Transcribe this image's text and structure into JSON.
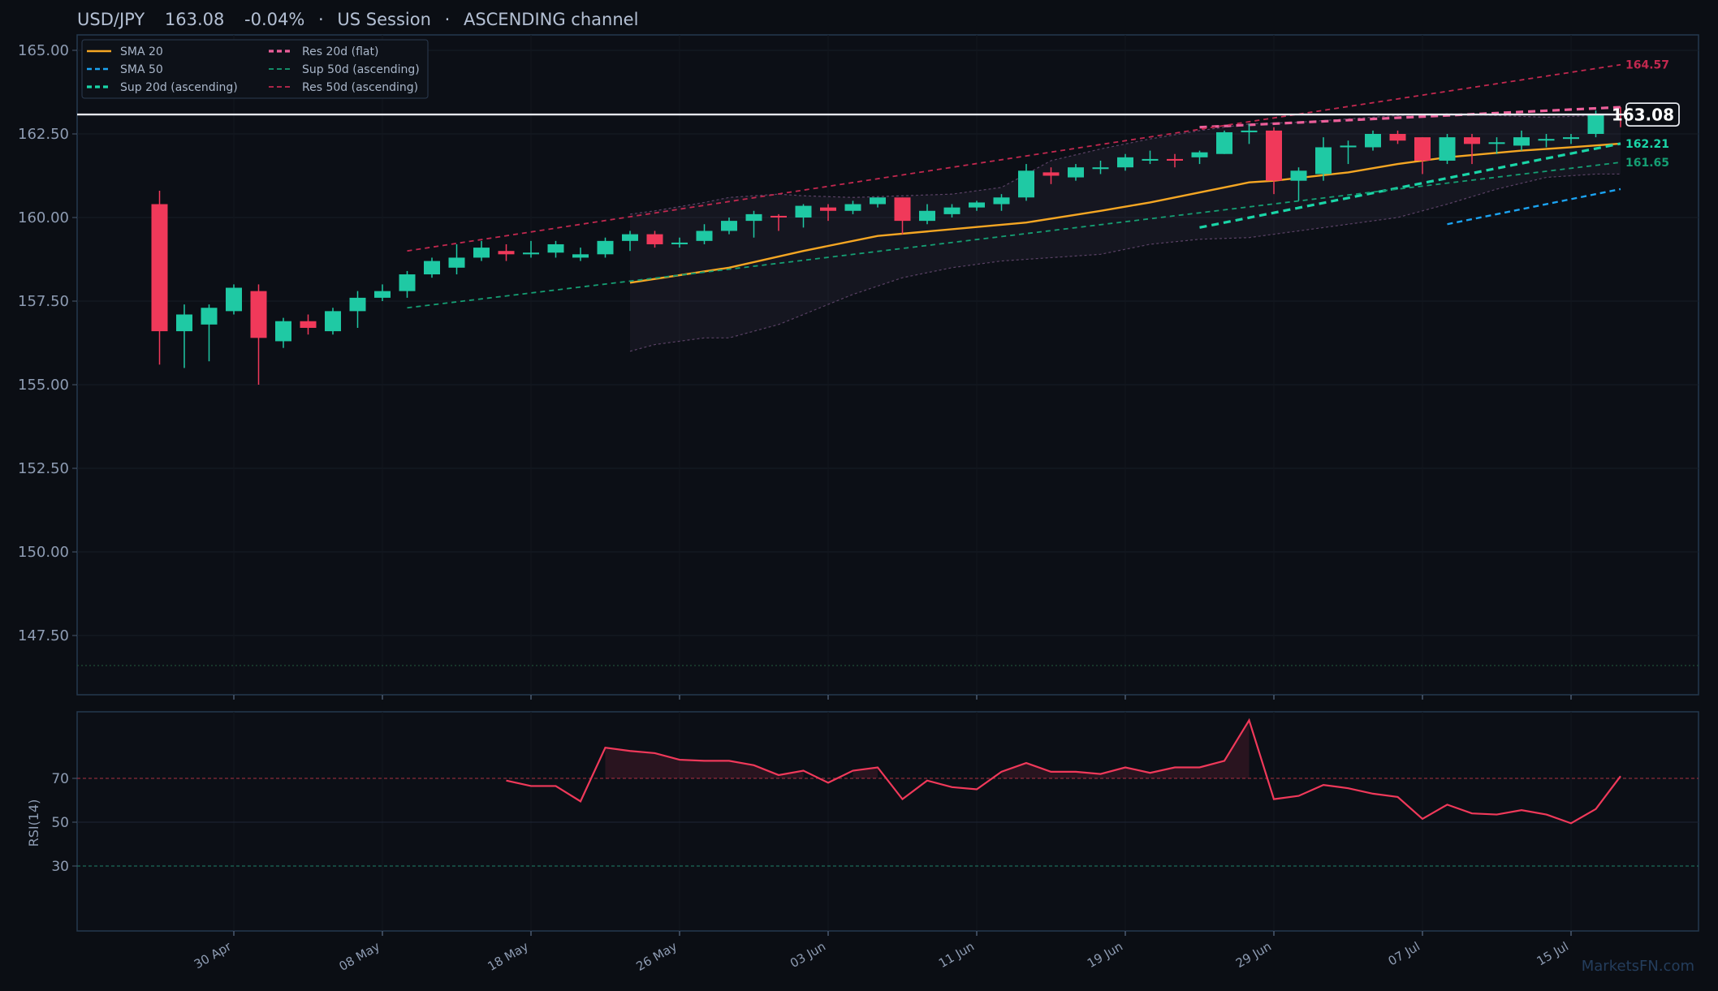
{
  "header": {
    "symbol": "USD/JPY",
    "price": "163.08",
    "change": "-0.04%",
    "session": "US Session",
    "pattern": "ASCENDING channel"
  },
  "watermark": "MarketsFN.com",
  "colors": {
    "background": "#0b0e14",
    "bull": "#1fc9a4",
    "bear": "#f0395a",
    "sma20": "#f5a623",
    "sma50": "#1ba3f2",
    "sup20": "#1ad6a8",
    "res20": "#ec5f9a",
    "sup50": "#159e73",
    "res50": "#c2284f",
    "rsi": "#f0395a",
    "axis_text": "#8e9cb3",
    "frame": "#24384f"
  },
  "chart_data": [
    {
      "type": "candlestick",
      "title": "",
      "xlabel": "",
      "ylabel": "",
      "ylim": [
        145.5,
        165.5
      ],
      "yticks": [
        "165.00",
        "162.50",
        "160.00",
        "157.50",
        "155.00",
        "152.50",
        "150.00",
        "147.50"
      ],
      "ytick_values": [
        165,
        162.5,
        160,
        157.5,
        155,
        152.5,
        150,
        147.5
      ],
      "xtick_labels": [
        "30 Apr",
        "08 May",
        "18 May",
        "26 May",
        "03 Jun",
        "11 Jun",
        "19 Jun",
        "29 Jun",
        "07 Jul",
        "15 Jul"
      ],
      "xtick_index": [
        3,
        9,
        15,
        21,
        27,
        33,
        39,
        45,
        51,
        57
      ],
      "x_index_range": [
        -0.5,
        66.5
      ],
      "grid": true,
      "legend_placement": "top-left",
      "last_price": "163.08",
      "last_price_value": 163.08,
      "candles": [
        {
          "i": 0,
          "o": 160.4,
          "h": 160.8,
          "l": 155.6,
          "c": 156.6
        },
        {
          "i": 1,
          "o": 156.6,
          "h": 157.4,
          "l": 155.5,
          "c": 157.1
        },
        {
          "i": 2,
          "o": 156.8,
          "h": 157.4,
          "l": 155.7,
          "c": 157.3
        },
        {
          "i": 3,
          "o": 157.2,
          "h": 158.0,
          "l": 157.1,
          "c": 157.9
        },
        {
          "i": 4,
          "o": 157.8,
          "h": 158.0,
          "l": 155.0,
          "c": 156.4
        },
        {
          "i": 5,
          "o": 156.3,
          "h": 157.0,
          "l": 156.1,
          "c": 156.9
        },
        {
          "i": 6,
          "o": 156.9,
          "h": 157.1,
          "l": 156.5,
          "c": 156.7
        },
        {
          "i": 7,
          "o": 156.6,
          "h": 157.3,
          "l": 156.5,
          "c": 157.2
        },
        {
          "i": 8,
          "o": 157.2,
          "h": 157.8,
          "l": 156.7,
          "c": 157.6
        },
        {
          "i": 9,
          "o": 157.6,
          "h": 158.0,
          "l": 157.5,
          "c": 157.8
        },
        {
          "i": 10,
          "o": 157.8,
          "h": 158.4,
          "l": 157.6,
          "c": 158.3
        },
        {
          "i": 11,
          "o": 158.3,
          "h": 158.8,
          "l": 158.2,
          "c": 158.7
        },
        {
          "i": 12,
          "o": 158.5,
          "h": 159.2,
          "l": 158.3,
          "c": 158.8
        },
        {
          "i": 13,
          "o": 158.8,
          "h": 159.3,
          "l": 158.7,
          "c": 159.1
        },
        {
          "i": 14,
          "o": 159.0,
          "h": 159.2,
          "l": 158.7,
          "c": 158.9
        },
        {
          "i": 15,
          "o": 158.9,
          "h": 159.3,
          "l": 158.8,
          "c": 158.95
        },
        {
          "i": 16,
          "o": 158.95,
          "h": 159.3,
          "l": 158.8,
          "c": 159.2
        },
        {
          "i": 17,
          "o": 158.8,
          "h": 159.1,
          "l": 158.7,
          "c": 158.9
        },
        {
          "i": 18,
          "o": 158.9,
          "h": 159.4,
          "l": 158.8,
          "c": 159.3
        },
        {
          "i": 19,
          "o": 159.3,
          "h": 159.6,
          "l": 159.0,
          "c": 159.5
        },
        {
          "i": 20,
          "o": 159.5,
          "h": 159.6,
          "l": 159.1,
          "c": 159.2
        },
        {
          "i": 21,
          "o": 159.2,
          "h": 159.4,
          "l": 159.1,
          "c": 159.25
        },
        {
          "i": 22,
          "o": 159.3,
          "h": 159.8,
          "l": 159.2,
          "c": 159.6
        },
        {
          "i": 23,
          "o": 159.6,
          "h": 160.0,
          "l": 159.5,
          "c": 159.9
        },
        {
          "i": 24,
          "o": 159.9,
          "h": 160.2,
          "l": 159.4,
          "c": 160.1
        },
        {
          "i": 25,
          "o": 160.05,
          "h": 160.1,
          "l": 159.6,
          "c": 160.0
        },
        {
          "i": 26,
          "o": 160.0,
          "h": 160.4,
          "l": 159.7,
          "c": 160.35
        },
        {
          "i": 27,
          "o": 160.3,
          "h": 160.4,
          "l": 159.9,
          "c": 160.2
        },
        {
          "i": 28,
          "o": 160.2,
          "h": 160.5,
          "l": 160.1,
          "c": 160.4
        },
        {
          "i": 29,
          "o": 160.4,
          "h": 160.6,
          "l": 160.3,
          "c": 160.6
        },
        {
          "i": 30,
          "o": 160.6,
          "h": 160.6,
          "l": 159.5,
          "c": 159.9
        },
        {
          "i": 31,
          "o": 159.9,
          "h": 160.4,
          "l": 159.8,
          "c": 160.2
        },
        {
          "i": 32,
          "o": 160.1,
          "h": 160.4,
          "l": 160.0,
          "c": 160.3
        },
        {
          "i": 33,
          "o": 160.3,
          "h": 160.5,
          "l": 160.2,
          "c": 160.45
        },
        {
          "i": 34,
          "o": 160.4,
          "h": 160.7,
          "l": 160.2,
          "c": 160.6
        },
        {
          "i": 35,
          "o": 160.6,
          "h": 161.6,
          "l": 160.5,
          "c": 161.4
        },
        {
          "i": 36,
          "o": 161.35,
          "h": 161.5,
          "l": 161.0,
          "c": 161.25
        },
        {
          "i": 37,
          "o": 161.2,
          "h": 161.6,
          "l": 161.1,
          "c": 161.5
        },
        {
          "i": 38,
          "o": 161.45,
          "h": 161.7,
          "l": 161.3,
          "c": 161.5
        },
        {
          "i": 39,
          "o": 161.5,
          "h": 161.9,
          "l": 161.4,
          "c": 161.8
        },
        {
          "i": 40,
          "o": 161.7,
          "h": 162.0,
          "l": 161.6,
          "c": 161.75
        },
        {
          "i": 41,
          "o": 161.75,
          "h": 161.9,
          "l": 161.5,
          "c": 161.7
        },
        {
          "i": 42,
          "o": 161.8,
          "h": 162.0,
          "l": 161.6,
          "c": 161.95
        },
        {
          "i": 43,
          "o": 161.9,
          "h": 162.6,
          "l": 161.9,
          "c": 162.55
        },
        {
          "i": 44,
          "o": 162.55,
          "h": 162.8,
          "l": 162.2,
          "c": 162.6
        },
        {
          "i": 45,
          "o": 162.6,
          "h": 162.7,
          "l": 160.7,
          "c": 161.1
        },
        {
          "i": 46,
          "o": 161.1,
          "h": 161.5,
          "l": 160.5,
          "c": 161.4
        },
        {
          "i": 47,
          "o": 161.3,
          "h": 162.4,
          "l": 161.1,
          "c": 162.1
        },
        {
          "i": 48,
          "o": 162.1,
          "h": 162.3,
          "l": 161.6,
          "c": 162.15
        },
        {
          "i": 49,
          "o": 162.1,
          "h": 162.6,
          "l": 162.0,
          "c": 162.5
        },
        {
          "i": 50,
          "o": 162.5,
          "h": 162.6,
          "l": 162.2,
          "c": 162.3
        },
        {
          "i": 51,
          "o": 162.4,
          "h": 162.4,
          "l": 161.3,
          "c": 161.7
        },
        {
          "i": 52,
          "o": 161.7,
          "h": 162.5,
          "l": 161.6,
          "c": 162.4
        },
        {
          "i": 53,
          "o": 162.4,
          "h": 162.5,
          "l": 161.6,
          "c": 162.2
        },
        {
          "i": 54,
          "o": 162.2,
          "h": 162.4,
          "l": 161.9,
          "c": 162.25
        },
        {
          "i": 55,
          "o": 162.15,
          "h": 162.6,
          "l": 162.0,
          "c": 162.4
        },
        {
          "i": 56,
          "o": 162.3,
          "h": 162.5,
          "l": 162.1,
          "c": 162.35
        },
        {
          "i": 57,
          "o": 162.35,
          "h": 162.5,
          "l": 162.2,
          "c": 162.4
        },
        {
          "i": 58,
          "o": 162.5,
          "h": 163.2,
          "l": 162.4,
          "c": 163.1
        },
        {
          "i": 59,
          "o": 163.1,
          "h": 163.3,
          "l": 162.7,
          "c": 163.08
        }
      ],
      "series": [
        {
          "name": "SMA 20",
          "style": "solid",
          "color": "#f5a623",
          "x": [
            19,
            23,
            26,
            29,
            35,
            38,
            40,
            44,
            45,
            48,
            50,
            52,
            55,
            57,
            59
          ],
          "values": [
            158.05,
            158.5,
            159.0,
            159.45,
            159.85,
            160.2,
            160.45,
            161.05,
            161.1,
            161.35,
            161.6,
            161.8,
            162.0,
            162.1,
            162.21
          ]
        },
        {
          "name": "SMA 50",
          "style": "dash",
          "color": "#1ba3f2",
          "x": [
            52,
            59
          ],
          "values": [
            159.8,
            160.85
          ]
        },
        {
          "name": "Sup 20d (ascending)",
          "style": "dash-bold",
          "color": "#1ad6a8",
          "x": [
            42,
            59
          ],
          "values": [
            159.7,
            162.21
          ]
        },
        {
          "name": "Res 20d (flat)",
          "style": "dash-bold",
          "color": "#ec5f9a",
          "x": [
            42,
            59
          ],
          "values": [
            162.7,
            163.3
          ]
        },
        {
          "name": "Sup 50d (ascending)",
          "style": "dash-thin",
          "color": "#159e73",
          "x": [
            10,
            59
          ],
          "values": [
            157.3,
            161.65
          ]
        },
        {
          "name": "Res 50d (ascending)",
          "style": "dash-thin",
          "color": "#c2284f",
          "x": [
            10,
            59
          ],
          "values": [
            159.0,
            164.57
          ]
        }
      ],
      "bollinger": {
        "x": [
          19,
          20,
          22,
          23,
          25,
          26,
          28,
          30,
          32,
          34,
          36,
          38,
          40,
          42,
          44,
          46,
          48,
          50,
          52,
          54,
          56,
          58,
          59
        ],
        "upper": [
          160.1,
          160.2,
          160.45,
          160.6,
          160.7,
          160.65,
          160.6,
          160.65,
          160.7,
          160.9,
          161.7,
          162.05,
          162.35,
          162.6,
          162.8,
          162.85,
          162.95,
          163.05,
          163.1,
          163.05,
          163.0,
          163.05,
          163.1
        ],
        "lower": [
          156.0,
          156.2,
          156.4,
          156.4,
          156.8,
          157.1,
          157.7,
          158.2,
          158.5,
          158.7,
          158.8,
          158.9,
          159.2,
          159.35,
          159.4,
          159.6,
          159.8,
          160.0,
          160.4,
          160.85,
          161.2,
          161.3,
          161.3
        ]
      },
      "right_labels": [
        {
          "text": "164.57",
          "value": 164.57,
          "color": "#c2284f"
        },
        {
          "text": "162.21",
          "value": 162.21,
          "color": "#1ad6a8"
        },
        {
          "text": "161.65",
          "value": 161.65,
          "color": "#159e73"
        }
      ]
    },
    {
      "type": "line",
      "title": "",
      "xlabel": "",
      "ylabel": "RSI(14)",
      "ylim": [
        0,
        100
      ],
      "yticks": [
        "70",
        "50",
        "30"
      ],
      "ytick_values": [
        70,
        50,
        30
      ],
      "overbought": 70,
      "oversold": 30,
      "series": [
        {
          "x": [
            14,
            15,
            16,
            17,
            18,
            19,
            20,
            21,
            22,
            23,
            24,
            25,
            26,
            27,
            28,
            29,
            30,
            31,
            32,
            33,
            34,
            35,
            36,
            37,
            38,
            39,
            40,
            41,
            42,
            43,
            44,
            45,
            46,
            47,
            48,
            49,
            50,
            51,
            52,
            53,
            54,
            55,
            56,
            57,
            58,
            59
          ],
          "values": [
            69,
            66.5,
            66.5,
            59.5,
            84,
            82.5,
            81.5,
            78.5,
            78,
            78,
            76,
            71.5,
            73.5,
            68,
            73.5,
            75,
            60.5,
            69,
            66,
            65,
            73,
            77,
            73,
            73,
            72,
            75,
            72.5,
            75,
            75,
            78,
            96.5,
            60.5,
            62,
            67,
            65.5,
            63,
            61.5,
            51.5,
            58,
            54,
            53.5,
            55.5,
            53.5,
            49.5,
            56,
            71
          ]
        }
      ]
    }
  ]
}
